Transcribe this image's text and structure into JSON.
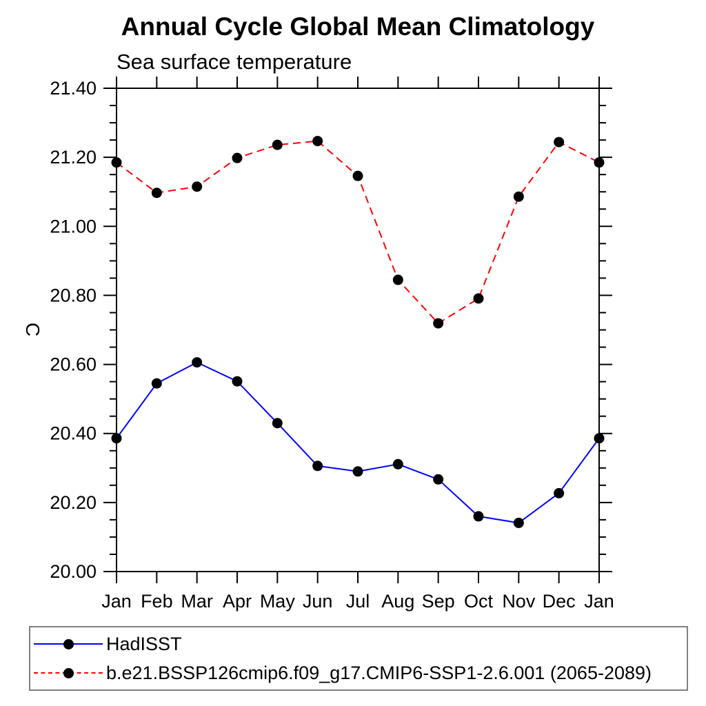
{
  "chart_data": {
    "type": "line",
    "title": "Annual Cycle Global Mean Climatology",
    "subtitle": "Sea surface temperature",
    "xlabel": "",
    "ylabel": "C",
    "categories": [
      "Jan",
      "Feb",
      "Mar",
      "Apr",
      "May",
      "Jun",
      "Jul",
      "Aug",
      "Sep",
      "Oct",
      "Nov",
      "Dec",
      "Jan"
    ],
    "ylim": [
      20.0,
      21.4
    ],
    "ytick_major": 0.2,
    "ytick_minor": 0.05,
    "ytick_labels": [
      "20.00",
      "20.20",
      "20.40",
      "20.60",
      "20.80",
      "21.00",
      "21.20",
      "21.40"
    ],
    "grid": false,
    "legend_position": "bottom",
    "series": [
      {
        "name": "HadISST",
        "color": "#0000ff",
        "dash": "solid",
        "marker": "circle",
        "marker_color": "#000000",
        "values": [
          20.386,
          20.545,
          20.606,
          20.551,
          20.43,
          20.306,
          20.29,
          20.311,
          20.267,
          20.16,
          20.141,
          20.227,
          20.386
        ]
      },
      {
        "name": "b.e21.BSSP126cmip6.f09_g17.CMIP6-SSP1-2.6.001 (2065-2089)",
        "color": "#ff0000",
        "dash": "dashed",
        "marker": "circle",
        "marker_color": "#000000",
        "values": [
          21.185,
          21.097,
          21.115,
          21.198,
          21.236,
          21.247,
          21.146,
          20.845,
          20.719,
          20.791,
          21.086,
          21.244,
          21.185
        ]
      }
    ],
    "colors": {
      "frame": "#000000",
      "text": "#000000",
      "legend_border": "#7f7f7f"
    }
  }
}
